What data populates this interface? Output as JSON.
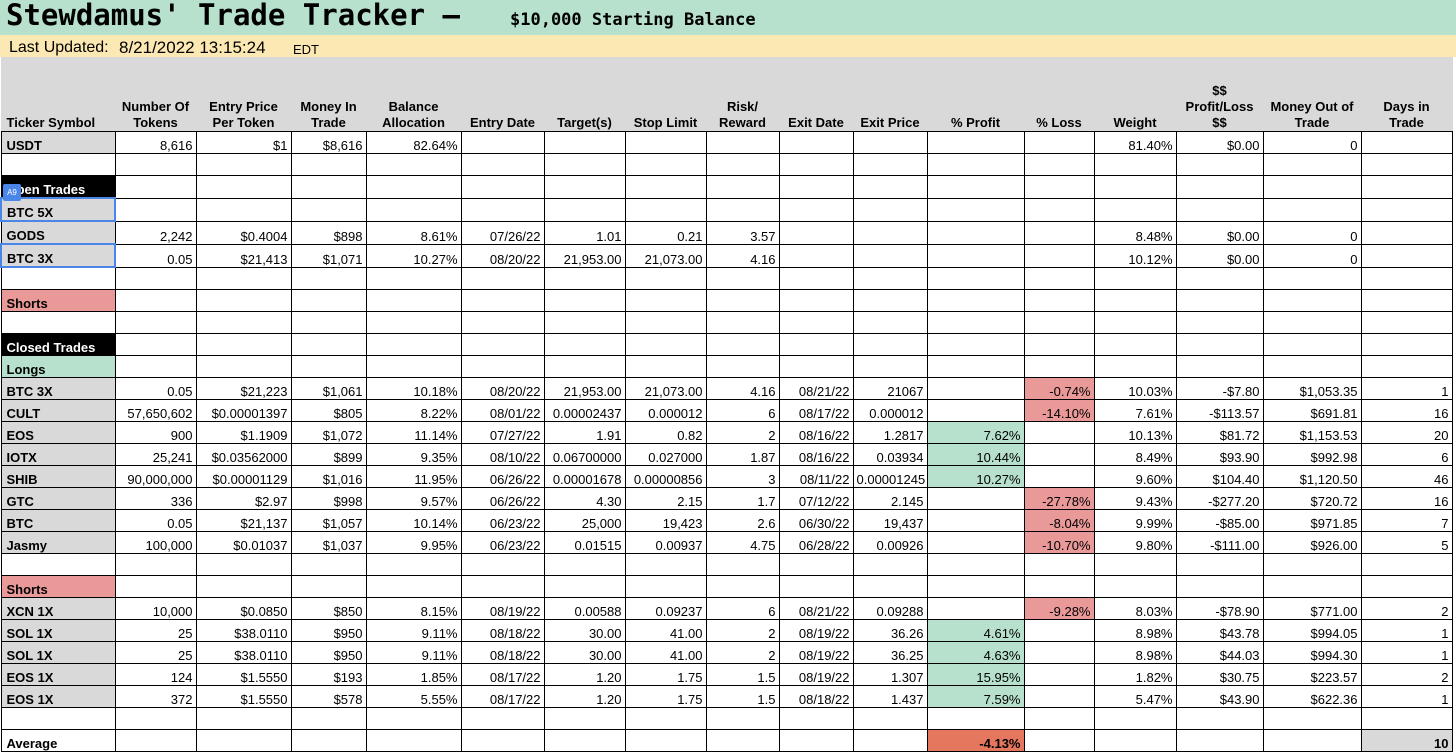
{
  "header": {
    "title": "Stewdamus' Trade Tracker –",
    "subtitle": "$10,000 Starting Balance",
    "last_updated_label": "Last Updated:",
    "last_updated_value": "8/21/2022 13:15:24",
    "timezone": "EDT"
  },
  "cell_marker": "A9",
  "columns": [
    "Ticker Symbol",
    "Number Of Tokens",
    "Entry Price Per Token",
    "Money In Trade",
    "Balance Allocation",
    "Entry Date",
    "Target(s)",
    "Stop Limit",
    "Risk/ Reward",
    "Exit Date",
    "Exit Price",
    "% Profit",
    "% Loss",
    "Weight",
    "$$ Profit/Loss $$",
    "Money Out of Trade",
    "Days in Trade"
  ],
  "rows": [
    {
      "ticker": "USDT",
      "style": "grey",
      "cells": [
        "8,616",
        "$1",
        "$8,616",
        "82.64%",
        "",
        "",
        "",
        "",
        "",
        "",
        "",
        "",
        "81.40%",
        "$0.00",
        "0",
        ""
      ]
    },
    {
      "ticker": "",
      "style": "plain",
      "cells": [
        "",
        "",
        "",
        "",
        "",
        "",
        "",
        "",
        "",
        "",
        "",
        "",
        "",
        "",
        "",
        ""
      ]
    },
    {
      "ticker": "Open Trades",
      "style": "black",
      "cells": [
        "",
        "",
        "",
        "",
        "",
        "",
        "",
        "",
        "",
        "",
        "",
        "",
        "",
        "",
        "",
        ""
      ]
    },
    {
      "ticker": "BTC 5X",
      "style": "grey-sel",
      "cells": [
        "",
        "",
        "",
        "",
        "",
        "",
        "",
        "",
        "",
        "",
        "",
        "",
        "",
        "",
        "",
        ""
      ]
    },
    {
      "ticker": "GODS",
      "style": "grey",
      "cells": [
        "2,242",
        "$0.4004",
        "$898",
        "8.61%",
        "07/26/22",
        "1.01",
        "0.21",
        "3.57",
        "",
        "",
        "",
        "",
        "8.48%",
        "$0.00",
        "0",
        ""
      ]
    },
    {
      "ticker": "BTC 3X",
      "style": "grey-sel",
      "cells": [
        "0.05",
        "$21,413",
        "$1,071",
        "10.27%",
        "08/20/22",
        "21,953.00",
        "21,073.00",
        "4.16",
        "",
        "",
        "",
        "",
        "10.12%",
        "$0.00",
        "0",
        ""
      ]
    },
    {
      "ticker": "",
      "style": "plain",
      "cells": [
        "",
        "",
        "",
        "",
        "",
        "",
        "",
        "",
        "",
        "",
        "",
        "",
        "",
        "",
        "",
        ""
      ]
    },
    {
      "ticker": "Shorts",
      "style": "red",
      "cells": [
        "",
        "",
        "",
        "",
        "",
        "",
        "",
        "",
        "",
        "",
        "",
        "",
        "",
        "",
        "",
        ""
      ]
    },
    {
      "ticker": "",
      "style": "plain",
      "cells": [
        "",
        "",
        "",
        "",
        "",
        "",
        "",
        "",
        "",
        "",
        "",
        "",
        "",
        "",
        "",
        ""
      ]
    },
    {
      "ticker": "Closed Trades",
      "style": "black",
      "cells": [
        "",
        "",
        "",
        "",
        "",
        "",
        "",
        "",
        "",
        "",
        "",
        "",
        "",
        "",
        "",
        ""
      ]
    },
    {
      "ticker": "Longs",
      "style": "green",
      "cells": [
        "",
        "",
        "",
        "",
        "",
        "",
        "",
        "",
        "",
        "",
        "",
        "",
        "",
        "",
        "",
        ""
      ]
    },
    {
      "ticker": "BTC 3X",
      "style": "grey",
      "cells": [
        "0.05",
        "$21,223",
        "$1,061",
        "10.18%",
        "08/20/22",
        "21,953.00",
        "21,073.00",
        "4.16",
        "08/21/22",
        "21067",
        "",
        "-0.74%",
        "10.03%",
        "-$7.80",
        "$1,053.35",
        "1"
      ]
    },
    {
      "ticker": "CULT",
      "style": "grey",
      "cells": [
        "57,650,602",
        "$0.00001397",
        "$805",
        "8.22%",
        "08/01/22",
        "0.00002437",
        "0.000012",
        "6",
        "08/17/22",
        "0.000012",
        "",
        "-14.10%",
        "7.61%",
        "-$113.57",
        "$691.81",
        "16"
      ]
    },
    {
      "ticker": "EOS",
      "style": "grey",
      "cells": [
        "900",
        "$1.1909",
        "$1,072",
        "11.14%",
        "07/27/22",
        "1.91",
        "0.82",
        "2",
        "08/16/22",
        "1.2817",
        "7.62%",
        "",
        "10.13%",
        "$81.72",
        "$1,153.53",
        "20"
      ]
    },
    {
      "ticker": "IOTX",
      "style": "grey",
      "cells": [
        "25,241",
        "$0.03562000",
        "$899",
        "9.35%",
        "08/10/22",
        "0.06700000",
        "0.027000",
        "1.87",
        "08/16/22",
        "0.03934",
        "10.44%",
        "",
        "8.49%",
        "$93.90",
        "$992.98",
        "6"
      ]
    },
    {
      "ticker": "SHIB",
      "style": "grey",
      "cells": [
        "90,000,000",
        "$0.00001129",
        "$1,016",
        "11.95%",
        "06/26/22",
        "0.00001678",
        "0.00000856",
        "3",
        "08/11/22",
        "0.00001245",
        "10.27%",
        "",
        "9.60%",
        "$104.40",
        "$1,120.50",
        "46"
      ]
    },
    {
      "ticker": "GTC",
      "style": "grey",
      "cells": [
        "336",
        "$2.97",
        "$998",
        "9.57%",
        "06/26/22",
        "4.30",
        "2.15",
        "1.7",
        "07/12/22",
        "2.145",
        "",
        "-27.78%",
        "9.43%",
        "-$277.20",
        "$720.72",
        "16"
      ]
    },
    {
      "ticker": "BTC",
      "style": "grey",
      "cells": [
        "0.05",
        "$21,137",
        "$1,057",
        "10.14%",
        "06/23/22",
        "25,000",
        "19,423",
        "2.6",
        "06/30/22",
        "19,437",
        "",
        "-8.04%",
        "9.99%",
        "-$85.00",
        "$971.85",
        "7"
      ]
    },
    {
      "ticker": "Jasmy",
      "style": "grey",
      "cells": [
        "100,000",
        "$0.01037",
        "$1,037",
        "9.95%",
        "06/23/22",
        "0.01515",
        "0.00937",
        "4.75",
        "06/28/22",
        "0.00926",
        "",
        "-10.70%",
        "9.80%",
        "-$111.00",
        "$926.00",
        "5"
      ]
    },
    {
      "ticker": "",
      "style": "plain",
      "cells": [
        "",
        "",
        "",
        "",
        "",
        "",
        "",
        "",
        "",
        "",
        "",
        "",
        "",
        "",
        "",
        ""
      ]
    },
    {
      "ticker": "Shorts",
      "style": "red",
      "cells": [
        "",
        "",
        "",
        "",
        "",
        "",
        "",
        "",
        "",
        "",
        "",
        "",
        "",
        "",
        "",
        ""
      ]
    },
    {
      "ticker": "XCN 1X",
      "style": "grey",
      "cells": [
        "10,000",
        "$0.0850",
        "$850",
        "8.15%",
        "08/19/22",
        "0.00588",
        "0.09237",
        "6",
        "08/21/22",
        "0.09288",
        "",
        "-9.28%",
        "8.03%",
        "-$78.90",
        "$771.00",
        "2"
      ]
    },
    {
      "ticker": "SOL 1X",
      "style": "grey",
      "cells": [
        "25",
        "$38.0110",
        "$950",
        "9.11%",
        "08/18/22",
        "30.00",
        "41.00",
        "2",
        "08/19/22",
        "36.26",
        "4.61%",
        "",
        "8.98%",
        "$43.78",
        "$994.05",
        "1"
      ]
    },
    {
      "ticker": "SOL 1X",
      "style": "grey",
      "cells": [
        "25",
        "$38.0110",
        "$950",
        "9.11%",
        "08/18/22",
        "30.00",
        "41.00",
        "2",
        "08/19/22",
        "36.25",
        "4.63%",
        "",
        "8.98%",
        "$44.03",
        "$994.30",
        "1"
      ]
    },
    {
      "ticker": "EOS 1X",
      "style": "grey",
      "cells": [
        "124",
        "$1.5550",
        "$193",
        "1.85%",
        "08/17/22",
        "1.20",
        "1.75",
        "1.5",
        "08/19/22",
        "1.307",
        "15.95%",
        "",
        "1.82%",
        "$30.75",
        "$223.57",
        "2"
      ]
    },
    {
      "ticker": "EOS 1X",
      "style": "grey",
      "cells": [
        "372",
        "$1.5550",
        "$578",
        "5.55%",
        "08/17/22",
        "1.20",
        "1.75",
        "1.5",
        "08/18/22",
        "1.437",
        "7.59%",
        "",
        "5.47%",
        "$43.90",
        "$622.36",
        "1"
      ]
    },
    {
      "ticker": "",
      "style": "plain",
      "cells": [
        "",
        "",
        "",
        "",
        "",
        "",
        "",
        "",
        "",
        "",
        "",
        "",
        "",
        "",
        "",
        ""
      ]
    },
    {
      "ticker": "Average",
      "style": "avg",
      "cells": [
        "",
        "",
        "",
        "",
        "",
        "",
        "",
        "",
        "",
        "",
        "-4.13%",
        "",
        "",
        "",
        "",
        "10"
      ]
    }
  ],
  "colors": {
    "title_bg": "#b7e1cd",
    "updated_bg": "#fce8b2",
    "header_bg": "#d9d9d9",
    "profit_bg": "#b7e1cd",
    "loss_bg": "#ea9999",
    "average_profit_bg": "#e6775f",
    "selection_blue": "#4a86e8"
  }
}
